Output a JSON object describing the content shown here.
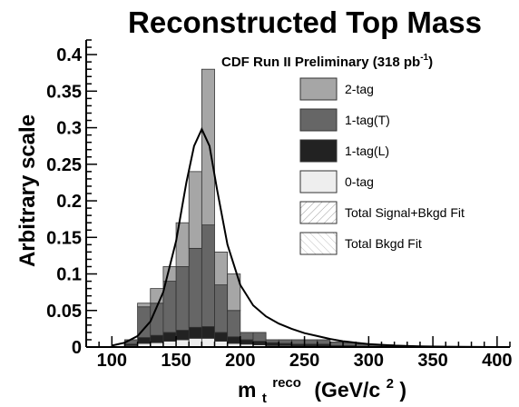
{
  "chart_data": {
    "type": "bar",
    "title": "Reconstructed Top Mass",
    "xlabel": "m_t^reco (GeV/c^2)",
    "xlabel_parts": {
      "main": "m",
      "sub": "t",
      "sup": "reco",
      "units": "(GeV/c",
      "units_sup": "2",
      "units_close": ")"
    },
    "ylabel": "Arbitrary scale",
    "annotation": "CDF Run II Preliminary (318 pb",
    "annotation_sup": "-1",
    "annotation_close": ")",
    "xlim": [
      80,
      410
    ],
    "ylim": [
      0,
      0.42
    ],
    "x_ticks": [
      100,
      150,
      200,
      250,
      300,
      350,
      400
    ],
    "y_ticks": [
      0,
      0.05,
      0.1,
      0.15,
      0.2,
      0.25,
      0.3,
      0.35,
      0.4
    ],
    "y_tick_labels": [
      "0",
      "0.05",
      "0.1",
      "0.15",
      "0.2",
      "0.25",
      "0.3",
      "0.35",
      "0.4"
    ],
    "bin_edges": [
      100,
      110,
      120,
      130,
      140,
      150,
      160,
      170,
      180,
      190,
      200,
      210,
      220,
      230,
      240,
      250,
      260,
      270,
      280,
      290,
      300,
      310,
      320,
      330,
      340,
      350,
      360,
      370,
      380,
      390,
      400
    ],
    "stacked": true,
    "series": [
      {
        "name": "0-tag",
        "color": "#eeeeee",
        "values": [
          0,
          0.002,
          0.005,
          0.006,
          0.008,
          0.01,
          0.012,
          0.012,
          0.008,
          0.005,
          0.004,
          0.003,
          0.002,
          0.002,
          0.001,
          0.001,
          0.001,
          0,
          0,
          0,
          0,
          0,
          0,
          0,
          0,
          0,
          0,
          0,
          0,
          0
        ]
      },
      {
        "name": "1-tag(L)",
        "color": "#222222",
        "values": [
          0,
          0.002,
          0.008,
          0.01,
          0.012,
          0.013,
          0.015,
          0.016,
          0.012,
          0.009,
          0.006,
          0.005,
          0.004,
          0.003,
          0.003,
          0.003,
          0.003,
          0.002,
          0.002,
          0.001,
          0.001,
          0.001,
          0,
          0,
          0,
          0,
          0,
          0,
          0,
          0
        ]
      },
      {
        "name": "1-tag(T)",
        "color": "#666666",
        "values": [
          0,
          0.006,
          0.042,
          0.044,
          0.07,
          0.087,
          0.108,
          0.139,
          0.065,
          0.036,
          0.01,
          0.012,
          0.004,
          0.005,
          0.006,
          0.006,
          0.006,
          0.005,
          0.004,
          0.003,
          0.002,
          0.002,
          0.002,
          0.001,
          0.001,
          0.001,
          0,
          0,
          0,
          0
        ]
      },
      {
        "name": "2-tag",
        "color": "#a6a6a6",
        "values": [
          0,
          0,
          0.005,
          0.02,
          0.02,
          0.06,
          0.105,
          0.213,
          0.045,
          0.05,
          0,
          0,
          0,
          0,
          0,
          0,
          0,
          0,
          0,
          0,
          0,
          0,
          0,
          0,
          0,
          0,
          0,
          0,
          0,
          0
        ]
      }
    ],
    "fit_curve": {
      "name": "Total Signal+Bkgd Fit",
      "points": [
        [
          100,
          0.002
        ],
        [
          110,
          0.006
        ],
        [
          120,
          0.015
        ],
        [
          130,
          0.035
        ],
        [
          140,
          0.075
        ],
        [
          150,
          0.145
        ],
        [
          158,
          0.225
        ],
        [
          164,
          0.275
        ],
        [
          170,
          0.298
        ],
        [
          176,
          0.275
        ],
        [
          182,
          0.215
        ],
        [
          190,
          0.14
        ],
        [
          200,
          0.085
        ],
        [
          210,
          0.057
        ],
        [
          220,
          0.042
        ],
        [
          230,
          0.032
        ],
        [
          240,
          0.025
        ],
        [
          250,
          0.019
        ],
        [
          260,
          0.015
        ],
        [
          270,
          0.011
        ],
        [
          280,
          0.008
        ],
        [
          290,
          0.006
        ],
        [
          300,
          0.004
        ],
        [
          320,
          0.002
        ],
        [
          340,
          0.001
        ],
        [
          360,
          0.0005
        ],
        [
          400,
          0.0
        ]
      ]
    },
    "legend": [
      {
        "label": "2-tag",
        "color": "#a6a6a6",
        "style": "solid"
      },
      {
        "label": "1-tag(T)",
        "color": "#666666",
        "style": "solid"
      },
      {
        "label": "1-tag(L)",
        "color": "#222222",
        "style": "solid"
      },
      {
        "label": "0-tag",
        "color": "#eeeeee",
        "style": "solid"
      },
      {
        "label": "Total Signal+Bkgd Fit",
        "color": "#ffffff",
        "style": "hatch"
      },
      {
        "label": "Total Bkgd Fit",
        "color": "#ffffff",
        "style": "hatch"
      }
    ],
    "legend_position": "top-right",
    "grid": false
  }
}
